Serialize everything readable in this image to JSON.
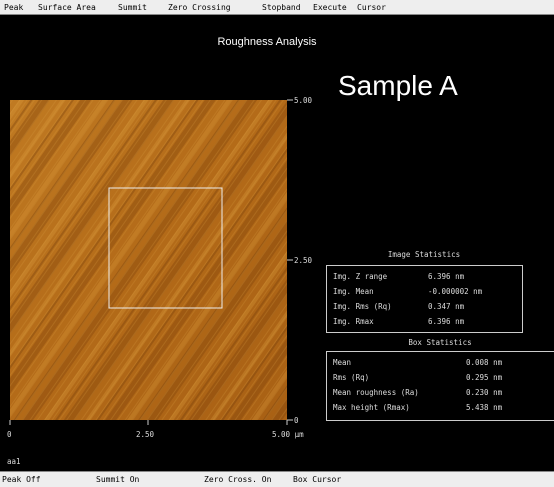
{
  "menu": [
    "Peak",
    "Surface Area",
    "Summit",
    "Zero Crossing",
    "Stopband",
    "Execute",
    "Cursor"
  ],
  "title": "Roughness Analysis",
  "sample_label": "Sample A",
  "image": {
    "y_ticks": [
      "5.00",
      "2.50",
      "0"
    ],
    "x_ticks": [
      "0",
      "2.50",
      "5.00 µm"
    ]
  },
  "image_statistics": {
    "title": "Image Statistics",
    "rows": [
      [
        "Img. Z range",
        "6.396 nm"
      ],
      [
        "Img. Mean",
        "-0.000002 nm"
      ],
      [
        "Img. Rms (Rq)",
        "0.347 nm"
      ],
      [
        "Img. Rmax",
        "6.396 nm"
      ]
    ]
  },
  "box_statistics": {
    "title": "Box Statistics",
    "rows": [
      [
        "Mean",
        "0.008 nm"
      ],
      [
        "Rms (Rq)",
        "0.295 nm"
      ],
      [
        "Mean roughness (Ra)",
        "0.230 nm"
      ],
      [
        "Max height (Rmax)",
        "5.438 nm"
      ]
    ]
  },
  "file_name": "aa1",
  "status": [
    "Peak Off",
    "Summit On",
    "Zero Cross. On",
    "Box Cursor"
  ]
}
